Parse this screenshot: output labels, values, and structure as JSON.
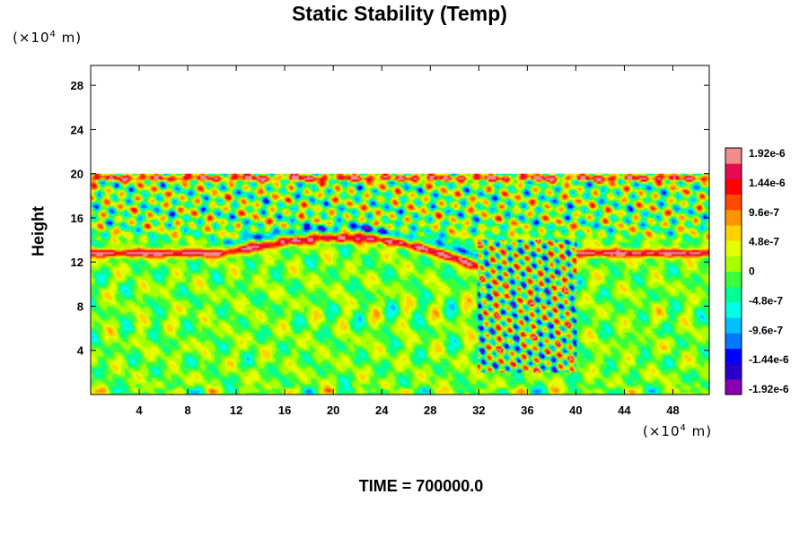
{
  "chart_data": {
    "type": "heatmap",
    "title": "Static Stability (Temp)",
    "ylabel": "Height",
    "xlabel": "",
    "y_unit_label": {
      "prefix": "(×10",
      "exp": "4",
      "suffix": " m)"
    },
    "x_unit_label": {
      "prefix": "(×10",
      "exp": "4",
      "suffix": " m)"
    },
    "xlim": [
      0,
      51
    ],
    "ylim": [
      0,
      29.8
    ],
    "x_ticks": [
      4,
      8,
      12,
      16,
      20,
      24,
      28,
      32,
      36,
      40,
      44,
      48
    ],
    "y_ticks": [
      4,
      8,
      12,
      16,
      20,
      24,
      28
    ],
    "data_top_height": 20,
    "field_features": {
      "background_value": 0,
      "stable_layer_height": 12.8,
      "stable_layer_x_ranges": [
        [
          0,
          11
        ],
        [
          40,
          51
        ]
      ],
      "arc_from": [
        11,
        12.8
      ],
      "arc_peak": [
        21,
        14.2
      ],
      "arc_to": [
        32,
        11.6
      ],
      "turbulent_zone_x": [
        32,
        40
      ]
    },
    "colorbar": {
      "min": -1.92e-06,
      "max": 1.92e-06,
      "tick_labels": [
        "1.92e-6",
        "1.44e-6",
        "9.6e-7",
        "4.8e-7",
        "0",
        "-4.8e-7",
        "-9.6e-7",
        "-1.44e-6",
        "-1.92e-6"
      ],
      "colors": [
        "#8a00b0",
        "#2a00c8",
        "#0000ff",
        "#0078ff",
        "#00c0ff",
        "#00ffe6",
        "#00ff96",
        "#3cff3c",
        "#a8ff00",
        "#e6ff00",
        "#ffd200",
        "#ff9400",
        "#ff4a00",
        "#ff0000",
        "#e60a50",
        "#f08c8c"
      ]
    },
    "grid": false,
    "legend": "right"
  },
  "footer": {
    "time_label": "TIME = 700000.0"
  }
}
